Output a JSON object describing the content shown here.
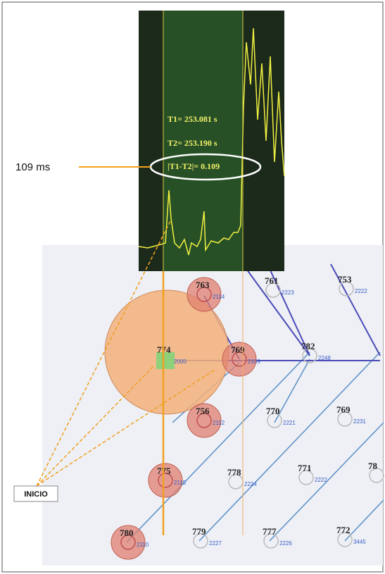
{
  "annotation": "109 ms",
  "scope": {
    "t1": "T1= 253.081 s",
    "t2": "T2= 253.190 s",
    "diff": "|T1-T2|= 0.109"
  },
  "start_label": "INICIO",
  "nodes": [
    {
      "label": "763",
      "id": "2114"
    },
    {
      "label": "761",
      "id": "2223"
    },
    {
      "label": "753",
      "id": "2222"
    },
    {
      "label": "774",
      "id": "2000"
    },
    {
      "label": "769",
      "id": "2109"
    },
    {
      "label": "782",
      "id": "2248"
    },
    {
      "label": "756",
      "id": "2112"
    },
    {
      "label": "770",
      "id": "2221"
    },
    {
      "label": "769",
      "id": "2231"
    },
    {
      "label": "775",
      "id": "2115"
    },
    {
      "label": "778",
      "id": "2224"
    },
    {
      "label": "771",
      "id": "2222"
    },
    {
      "label": "78",
      "id": null
    },
    {
      "label": "780",
      "id": "2110"
    },
    {
      "label": "779",
      "id": "2227"
    },
    {
      "label": "777",
      "id": "2226"
    },
    {
      "label": "772",
      "id": "3445"
    }
  ]
}
